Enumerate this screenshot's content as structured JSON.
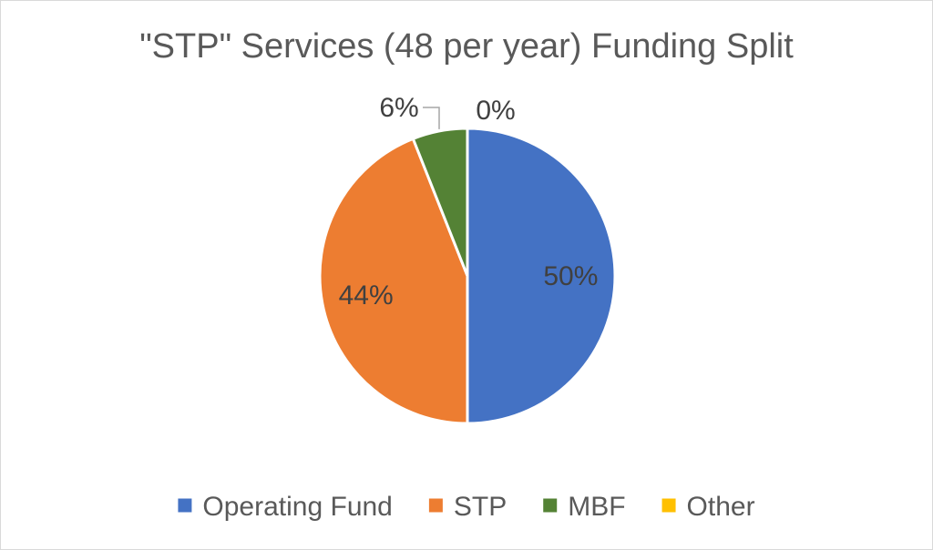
{
  "chart_data": {
    "type": "pie",
    "title": "\"STP\" Services (48 per year) Funding Split",
    "categories": [
      "Operating Fund",
      "STP",
      "MBF",
      "Other"
    ],
    "values": [
      50,
      44,
      6,
      0
    ],
    "labels": [
      "50%",
      "44%",
      "6%",
      "0%"
    ],
    "colors": [
      "#4472C4",
      "#ED7D31",
      "#548235",
      "#FFC000"
    ],
    "legend_position": "bottom"
  }
}
